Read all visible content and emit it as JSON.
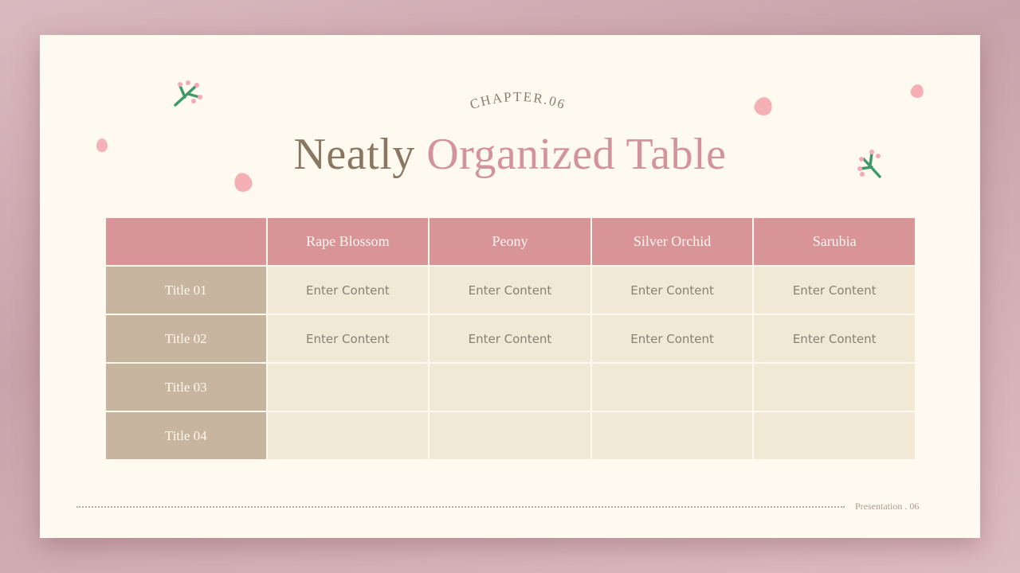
{
  "slide": {
    "chapter": "CHAPTER.06",
    "title_part1": "Neatly",
    "title_part2": "Organized Table",
    "footer": "Presentation . 06"
  },
  "table": {
    "headers": [
      "",
      "Rape Blossom",
      "Peony",
      "Silver Orchid",
      "Sarubia"
    ],
    "rows": [
      {
        "title": "Title 01",
        "cells": [
          "Enter Content",
          "Enter Content",
          "Enter Content",
          "Enter Content"
        ]
      },
      {
        "title": "Title 02",
        "cells": [
          "Enter Content",
          "Enter Content",
          "Enter Content",
          "Enter Content"
        ]
      },
      {
        "title": "Title 03",
        "cells": [
          "",
          "",
          "",
          ""
        ]
      },
      {
        "title": "Title 04",
        "cells": [
          "",
          "",
          "",
          ""
        ]
      }
    ]
  },
  "colors": {
    "header": "#d89497",
    "row_title": "#c8b59f",
    "cell": "#f2e8d6",
    "accent_pink": "#d2939a",
    "title_brown": "#8a7762"
  }
}
